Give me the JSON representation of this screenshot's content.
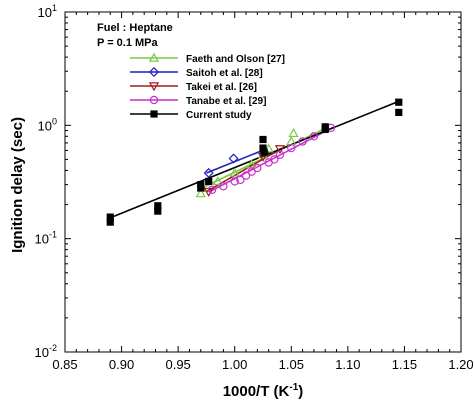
{
  "chart_data": {
    "type": "scatter",
    "annotations": [
      "Fuel : Heptane",
      "P = 0.1 MPa"
    ],
    "xlabel": "1000/T (K",
    "xlabel_sup": "-1",
    "xlabel_end": ")",
    "ylabel": "Ignition delay (sec)",
    "xlim": [
      0.85,
      1.2
    ],
    "ylim": [
      0.01,
      10
    ],
    "yscale": "log",
    "xticks": [
      "0.85",
      "0.90",
      "0.95",
      "1.00",
      "1.05",
      "1.10",
      "1.15",
      "1.20"
    ],
    "yticks": [
      {
        "base": "10",
        "exp": "1",
        "value": 10
      },
      {
        "base": "10",
        "exp": "0",
        "value": 1
      },
      {
        "base": "10",
        "exp": "-1",
        "value": 0.1
      },
      {
        "base": "10",
        "exp": "-2",
        "value": 0.01
      }
    ],
    "legend_position": "top-left",
    "series": [
      {
        "name": "Faeth and Olson [27]",
        "color": "#7ac943",
        "marker": "triangle-up",
        "points": [
          [
            0.97,
            0.25
          ],
          [
            0.971,
            0.28
          ],
          [
            0.985,
            0.32
          ],
          [
            1.0,
            0.38
          ],
          [
            1.015,
            0.45
          ],
          [
            1.025,
            0.55
          ],
          [
            1.03,
            0.62
          ],
          [
            1.05,
            0.72
          ],
          [
            1.052,
            0.85
          ],
          [
            1.08,
            0.95
          ]
        ],
        "fit": [
          [
            0.968,
            0.27
          ],
          [
            1.082,
            0.96
          ]
        ]
      },
      {
        "name": "Saitoh et al. [28]",
        "color": "#1f1fbf",
        "marker": "diamond",
        "points": [
          [
            0.977,
            0.38
          ],
          [
            0.999,
            0.51
          ],
          [
            1.026,
            0.58
          ]
        ],
        "fit": [
          [
            0.975,
            0.38
          ],
          [
            1.028,
            0.62
          ]
        ]
      },
      {
        "name": "Takei et al. [26]",
        "color": "#a01e1e",
        "marker": "triangle-down",
        "points": [
          [
            0.977,
            0.26
          ],
          [
            1.025,
            0.53
          ],
          [
            1.04,
            0.62
          ]
        ],
        "fit": [
          [
            0.975,
            0.26
          ],
          [
            1.042,
            0.63
          ]
        ]
      },
      {
        "name": "Tanabe et al. [29]",
        "color": "#cc2fd0",
        "marker": "circle",
        "points": [
          [
            0.98,
            0.27
          ],
          [
            0.99,
            0.29
          ],
          [
            1.0,
            0.32
          ],
          [
            1.005,
            0.33
          ],
          [
            1.01,
            0.36
          ],
          [
            1.015,
            0.39
          ],
          [
            1.02,
            0.42
          ],
          [
            1.03,
            0.47
          ],
          [
            1.035,
            0.5
          ],
          [
            1.04,
            0.55
          ],
          [
            1.05,
            0.63
          ],
          [
            1.06,
            0.72
          ],
          [
            1.07,
            0.8
          ],
          [
            1.085,
            0.95
          ]
        ],
        "fit": [
          [
            0.978,
            0.26
          ],
          [
            1.087,
            0.96
          ]
        ]
      },
      {
        "name": "Current study",
        "color": "#000000",
        "marker": "square",
        "points": [
          [
            0.89,
            0.14
          ],
          [
            0.89,
            0.155
          ],
          [
            0.932,
            0.175
          ],
          [
            0.932,
            0.195
          ],
          [
            0.97,
            0.28
          ],
          [
            0.97,
            0.3
          ],
          [
            0.977,
            0.32
          ],
          [
            1.025,
            0.63
          ],
          [
            1.025,
            0.75
          ],
          [
            1.026,
            0.58
          ],
          [
            1.08,
            0.97
          ],
          [
            1.08,
            0.92
          ],
          [
            1.145,
            1.3
          ],
          [
            1.145,
            1.6
          ]
        ],
        "fit": [
          [
            0.888,
            0.15
          ],
          [
            1.147,
            1.66
          ]
        ]
      }
    ]
  }
}
